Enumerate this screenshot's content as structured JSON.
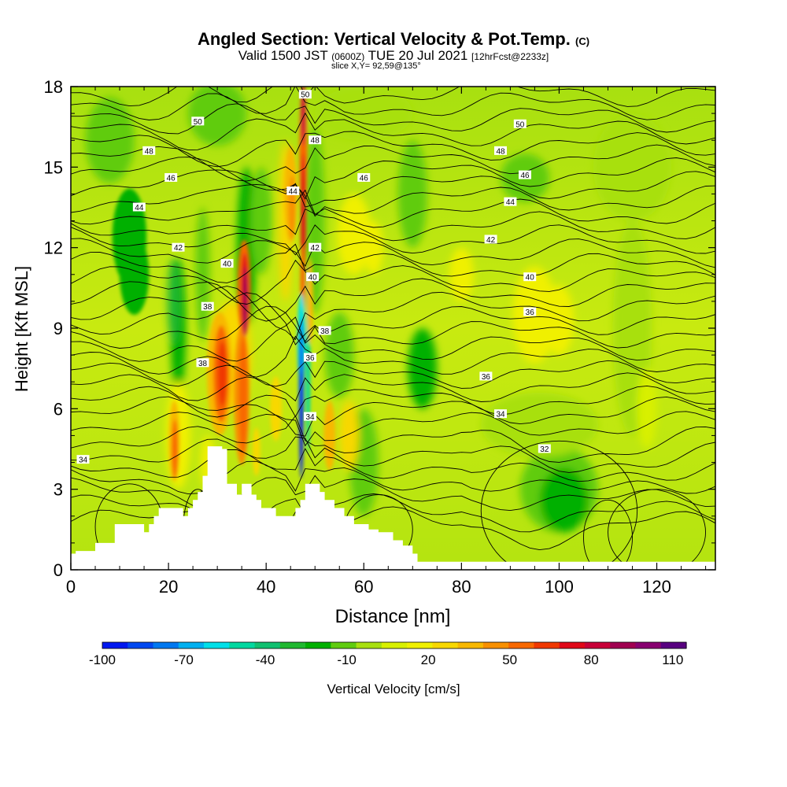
{
  "header": {
    "title": "Angled Section: Vertical Velocity & Pot.Temp.",
    "title_mark": "(C)",
    "valid_prefix": "Valid 1500 JST",
    "valid_zulu": "(0600Z)",
    "valid_date": "TUE 20 Jul 2021",
    "forecast": "[12hrFcst@2233z]",
    "slice": "slice X,Y= 92,59@135°"
  },
  "chart_data": {
    "type": "heatmap",
    "xlabel": "Distance [nm]",
    "ylabel": "Height [Kft MSL]",
    "xlim": [
      0,
      132
    ],
    "ylim": [
      0,
      18
    ],
    "x_ticks": [
      0,
      20,
      40,
      60,
      80,
      100,
      120
    ],
    "y_ticks": [
      0,
      3,
      6,
      9,
      12,
      15,
      18
    ],
    "grid": false,
    "colorbar": {
      "label": "Vertical Velocity [cm/s]",
      "tick_labels": [
        "-100",
        "-70",
        "-40",
        "-10",
        "20",
        "50",
        "80",
        "110"
      ],
      "range": [
        -100,
        115
      ],
      "colors": [
        "#0018f0",
        "#0048f0",
        "#0078f0",
        "#00b0f0",
        "#00e0e8",
        "#00d8a0",
        "#10c070",
        "#20b830",
        "#00b000",
        "#60cc10",
        "#a8e010",
        "#d8f000",
        "#f0f000",
        "#f8d800",
        "#f8b800",
        "#f89000",
        "#f86800",
        "#f03800",
        "#e00818",
        "#c80038",
        "#a00050",
        "#880070",
        "#580080"
      ]
    },
    "theta_contours": {
      "label_unit": "°C potential temperature",
      "levels": [
        32,
        34,
        36,
        38,
        40,
        42,
        44,
        46,
        48,
        50
      ],
      "label_positions": [
        {
          "label": "50",
          "x": 26,
          "y": 16.7
        },
        {
          "label": "50",
          "x": 92,
          "y": 16.6
        },
        {
          "label": "50",
          "x": 48,
          "y": 17.7
        },
        {
          "label": "48",
          "x": 16,
          "y": 15.6
        },
        {
          "label": "48",
          "x": 88,
          "y": 15.6
        },
        {
          "label": "48",
          "x": 50,
          "y": 16.0
        },
        {
          "label": "46",
          "x": 20.5,
          "y": 14.6
        },
        {
          "label": "46",
          "x": 60,
          "y": 14.6
        },
        {
          "label": "46",
          "x": 93,
          "y": 14.7
        },
        {
          "label": "44",
          "x": 14,
          "y": 13.5
        },
        {
          "label": "44",
          "x": 45.5,
          "y": 14.1
        },
        {
          "label": "44",
          "x": 90,
          "y": 13.7
        },
        {
          "label": "42",
          "x": 22,
          "y": 12.0
        },
        {
          "label": "42",
          "x": 50,
          "y": 12.0
        },
        {
          "label": "42",
          "x": 86,
          "y": 12.3
        },
        {
          "label": "40",
          "x": 32,
          "y": 11.4
        },
        {
          "label": "40",
          "x": 49.5,
          "y": 10.9
        },
        {
          "label": "40",
          "x": 94,
          "y": 10.9
        },
        {
          "label": "38",
          "x": 28,
          "y": 9.8
        },
        {
          "label": "38",
          "x": 52,
          "y": 8.9
        },
        {
          "label": "36",
          "x": 94,
          "y": 9.6
        },
        {
          "label": "38",
          "x": 27,
          "y": 7.7
        },
        {
          "label": "36",
          "x": 49,
          "y": 7.9
        },
        {
          "label": "36",
          "x": 85,
          "y": 7.2
        },
        {
          "label": "34",
          "x": 49,
          "y": 5.7
        },
        {
          "label": "34",
          "x": 88,
          "y": 5.8
        },
        {
          "label": "34",
          "x": 2.5,
          "y": 4.1
        },
        {
          "label": "32",
          "x": 97,
          "y": 4.5
        }
      ]
    },
    "terrain_kft": [
      [
        0,
        0.6
      ],
      [
        1,
        0.7
      ],
      [
        5,
        1.0
      ],
      [
        9,
        1.7
      ],
      [
        13,
        1.7
      ],
      [
        15,
        1.4
      ],
      [
        16,
        1.7
      ],
      [
        17,
        2.0
      ],
      [
        18,
        2.3
      ],
      [
        22,
        2.3
      ],
      [
        23,
        2.0
      ],
      [
        24,
        2.3
      ],
      [
        25,
        2.6
      ],
      [
        26,
        2.9
      ],
      [
        27,
        3.5
      ],
      [
        28,
        4.6
      ],
      [
        31,
        4.5
      ],
      [
        32,
        3.2
      ],
      [
        33,
        3.2
      ],
      [
        34,
        2.8
      ],
      [
        35,
        3.2
      ],
      [
        36,
        3.2
      ],
      [
        37,
        2.8
      ],
      [
        38,
        2.6
      ],
      [
        39,
        2.3
      ],
      [
        42,
        2.0
      ],
      [
        45,
        2.0
      ],
      [
        46,
        2.3
      ],
      [
        47,
        2.6
      ],
      [
        48,
        3.2
      ],
      [
        50,
        3.2
      ],
      [
        51,
        2.9
      ],
      [
        52,
        2.6
      ],
      [
        54,
        2.3
      ],
      [
        56,
        2.0
      ],
      [
        58,
        1.7
      ],
      [
        61,
        1.5
      ],
      [
        63,
        1.4
      ],
      [
        66,
        1.1
      ],
      [
        68,
        0.9
      ],
      [
        70,
        0.6
      ],
      [
        71,
        0.3
      ],
      [
        132,
        0.3
      ]
    ]
  }
}
